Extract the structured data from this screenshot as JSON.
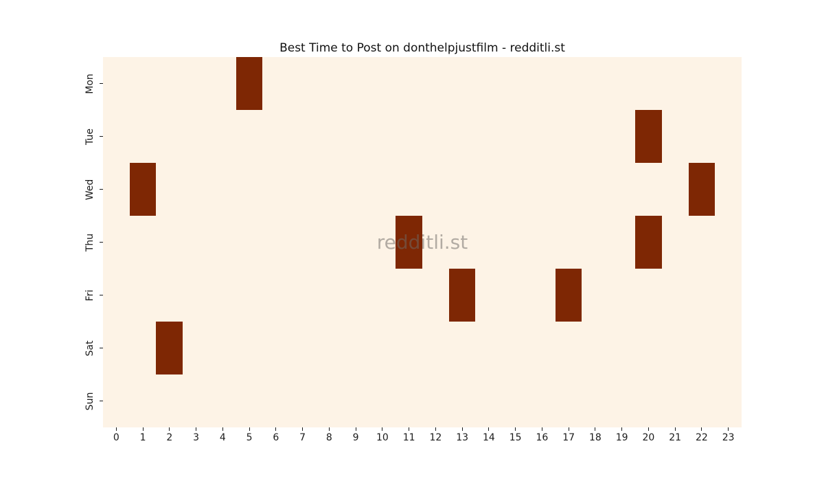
{
  "chart_data": {
    "type": "heatmap",
    "title": "Best Time to Post on donthelpjustfilm - redditli.st",
    "watermark": "redditli.st",
    "xlabel": "",
    "ylabel": "",
    "grid": false,
    "legend": "none",
    "x_tick_labels": [
      "0",
      "1",
      "2",
      "3",
      "4",
      "5",
      "6",
      "7",
      "8",
      "9",
      "10",
      "11",
      "12",
      "13",
      "14",
      "15",
      "16",
      "17",
      "18",
      "19",
      "20",
      "21",
      "22",
      "23"
    ],
    "y_tick_labels": [
      "Mon",
      "Tue",
      "Wed",
      "Thu",
      "Fri",
      "Sat",
      "Sun"
    ],
    "colormap": {
      "name": "Oranges",
      "low": "#fdf3e6",
      "high": "#7e2704"
    },
    "watermark_color": "#6e6a66",
    "values": [
      [
        0,
        0,
        0,
        0,
        0,
        1,
        0,
        0,
        0,
        0,
        0,
        0,
        0,
        0,
        0,
        0,
        0,
        0,
        0,
        0,
        0,
        0,
        0,
        0
      ],
      [
        0,
        0,
        0,
        0,
        0,
        0,
        0,
        0,
        0,
        0,
        0,
        0,
        0,
        0,
        0,
        0,
        0,
        0,
        0,
        0,
        1,
        0,
        0,
        0
      ],
      [
        0,
        1,
        0,
        0,
        0,
        0,
        0,
        0,
        0,
        0,
        0,
        0,
        0,
        0,
        0,
        0,
        0,
        0,
        0,
        0,
        0,
        0,
        1,
        0
      ],
      [
        0,
        0,
        0,
        0,
        0,
        0,
        0,
        0,
        0,
        0,
        0,
        1,
        0,
        0,
        0,
        0,
        0,
        0,
        0,
        0,
        1,
        0,
        0,
        0
      ],
      [
        0,
        0,
        0,
        0,
        0,
        0,
        0,
        0,
        0,
        0,
        0,
        0,
        0,
        1,
        0,
        0,
        0,
        1,
        0,
        0,
        0,
        0,
        0,
        0
      ],
      [
        0,
        0,
        1,
        0,
        0,
        0,
        0,
        0,
        0,
        0,
        0,
        0,
        0,
        0,
        0,
        0,
        0,
        0,
        0,
        0,
        0,
        0,
        0,
        0
      ],
      [
        0,
        0,
        0,
        0,
        0,
        0,
        0,
        0,
        0,
        0,
        0,
        0,
        0,
        0,
        0,
        0,
        0,
        0,
        0,
        0,
        0,
        0,
        0,
        0
      ]
    ],
    "highlighted_cells": [
      {
        "day": "Mon",
        "hour": 5
      },
      {
        "day": "Tue",
        "hour": 20
      },
      {
        "day": "Wed",
        "hour": 1
      },
      {
        "day": "Wed",
        "hour": 22
      },
      {
        "day": "Thu",
        "hour": 11
      },
      {
        "day": "Thu",
        "hour": 20
      },
      {
        "day": "Fri",
        "hour": 13
      },
      {
        "day": "Fri",
        "hour": 17
      },
      {
        "day": "Sat",
        "hour": 2
      }
    ]
  }
}
